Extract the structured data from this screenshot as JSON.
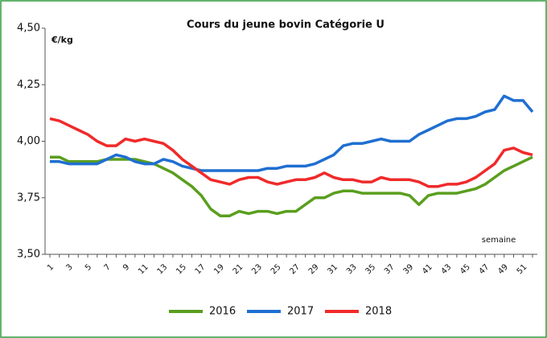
{
  "chart_data": {
    "type": "line",
    "title": "Cours du jeune bovin Catégorie U",
    "y_label": "€/kg",
    "x_label": "semaine",
    "categories": [
      1,
      null,
      3,
      null,
      5,
      null,
      7,
      null,
      9,
      null,
      11,
      null,
      13,
      null,
      15,
      null,
      17,
      null,
      19,
      null,
      21,
      null,
      23,
      null,
      25,
      null,
      27,
      null,
      29,
      null,
      31,
      null,
      33,
      null,
      35,
      null,
      37,
      null,
      39,
      null,
      41,
      null,
      43,
      null,
      45,
      null,
      47,
      null,
      49,
      null,
      51,
      null
    ],
    "ylim": [
      3.5,
      4.5
    ],
    "yticks": [
      {
        "value": 3.5,
        "label": "3,50"
      },
      {
        "value": 3.75,
        "label": "3,75"
      },
      {
        "value": 4.0,
        "label": "4,00"
      },
      {
        "value": 4.25,
        "label": "4,25"
      },
      {
        "value": 4.5,
        "label": "4,50"
      }
    ],
    "grid": false,
    "legend": "bottom",
    "series": [
      {
        "name": "2016",
        "color": "#5a9e1e",
        "values": [
          3.93,
          3.93,
          3.91,
          3.91,
          3.91,
          3.91,
          3.92,
          3.92,
          3.92,
          3.92,
          3.91,
          3.9,
          3.88,
          3.86,
          3.83,
          3.8,
          3.76,
          3.7,
          3.67,
          3.67,
          3.69,
          3.68,
          3.69,
          3.69,
          3.68,
          3.69,
          3.69,
          3.72,
          3.75,
          3.75,
          3.77,
          3.78,
          3.78,
          3.77,
          3.77,
          3.77,
          3.77,
          3.77,
          3.76,
          3.72,
          3.76,
          3.77,
          3.77,
          3.77,
          3.78,
          3.79,
          3.81,
          3.84,
          3.87,
          3.89,
          3.91,
          3.93
        ]
      },
      {
        "name": "2017",
        "color": "#1f6fd1",
        "values": [
          3.91,
          3.91,
          3.9,
          3.9,
          3.9,
          3.9,
          3.92,
          3.94,
          3.93,
          3.91,
          3.9,
          3.9,
          3.92,
          3.91,
          3.89,
          3.88,
          3.87,
          3.87,
          3.87,
          3.87,
          3.87,
          3.87,
          3.87,
          3.88,
          3.88,
          3.89,
          3.89,
          3.89,
          3.9,
          3.92,
          3.94,
          3.98,
          3.99,
          3.99,
          4.0,
          4.01,
          4.0,
          4.0,
          4.0,
          4.03,
          4.05,
          4.07,
          4.09,
          4.1,
          4.1,
          4.11,
          4.13,
          4.14,
          4.2,
          4.18,
          4.18,
          4.13
        ]
      },
      {
        "name": "2018",
        "color": "#f02a2a",
        "values": [
          4.1,
          4.09,
          4.07,
          4.05,
          4.03,
          4.0,
          3.98,
          3.98,
          4.01,
          4.0,
          4.01,
          4.0,
          3.99,
          3.96,
          3.92,
          3.89,
          3.86,
          3.83,
          3.82,
          3.81,
          3.83,
          3.84,
          3.84,
          3.82,
          3.81,
          3.82,
          3.83,
          3.83,
          3.84,
          3.86,
          3.84,
          3.83,
          3.83,
          3.82,
          3.82,
          3.84,
          3.83,
          3.83,
          3.83,
          3.82,
          3.8,
          3.8,
          3.81,
          3.81,
          3.82,
          3.84,
          3.87,
          3.9,
          3.96,
          3.97,
          3.95,
          3.94
        ]
      }
    ]
  }
}
